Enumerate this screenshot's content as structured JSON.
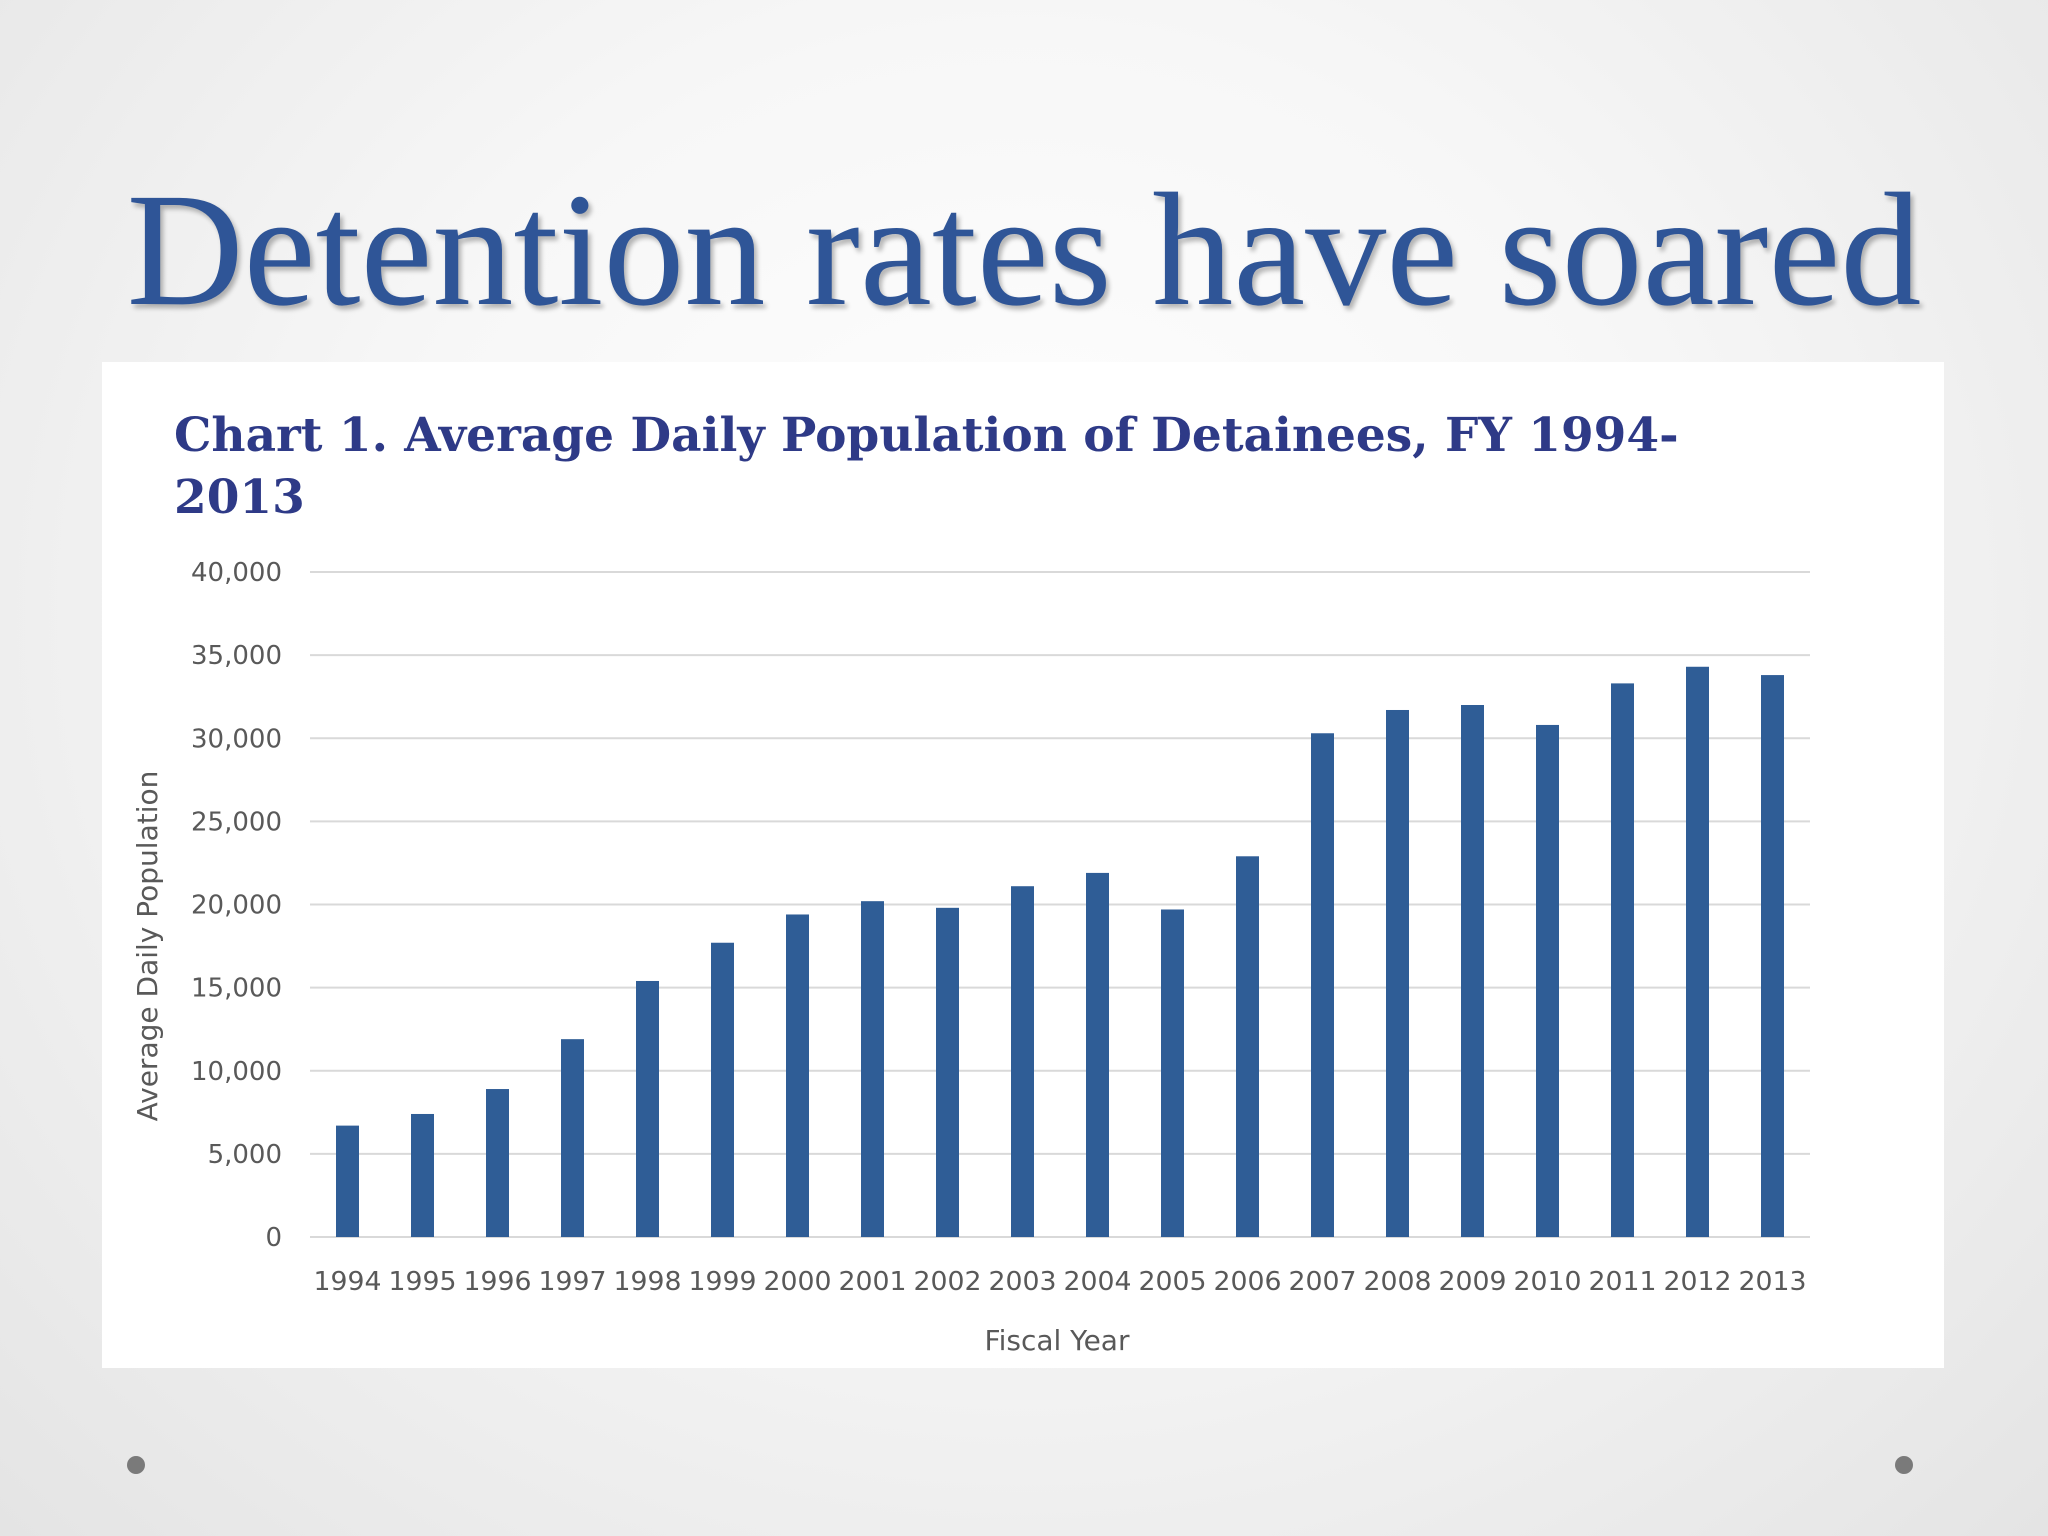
{
  "slide": {
    "title": "Detention rates have soared"
  },
  "chart_data": {
    "type": "bar",
    "title": "Chart 1. Average Daily Population of Detainees, FY 1994-2013",
    "title_lines": [
      "Chart 1. Average Daily Population of Detainees, FY 1994-",
      "2013"
    ],
    "xlabel": "Fiscal Year",
    "ylabel": "Average Daily Population",
    "categories": [
      "1994",
      "1995",
      "1996",
      "1997",
      "1998",
      "1999",
      "2000",
      "2001",
      "2002",
      "2003",
      "2004",
      "2005",
      "2006",
      "2007",
      "2008",
      "2009",
      "2010",
      "2011",
      "2012",
      "2013"
    ],
    "values": [
      6700,
      7400,
      8900,
      11900,
      15400,
      17700,
      19400,
      20200,
      19800,
      21100,
      21900,
      19700,
      22900,
      30300,
      31700,
      32000,
      30800,
      33300,
      34300,
      33800
    ],
    "ylim": [
      0,
      40000
    ],
    "yticks": [
      0,
      5000,
      10000,
      15000,
      20000,
      25000,
      30000,
      35000,
      40000
    ],
    "ytick_labels": [
      "0",
      "5,000",
      "10,000",
      "15,000",
      "20,000",
      "25,000",
      "30,000",
      "35,000",
      "40,000"
    ],
    "bar_color": "#2f5d96",
    "grid_color": "#d9d9d9",
    "grid": true,
    "legend": "none"
  },
  "colors": {
    "title": "#2f5597",
    "chart_title": "#2e3a87",
    "bullet": "#7a7a7a"
  }
}
